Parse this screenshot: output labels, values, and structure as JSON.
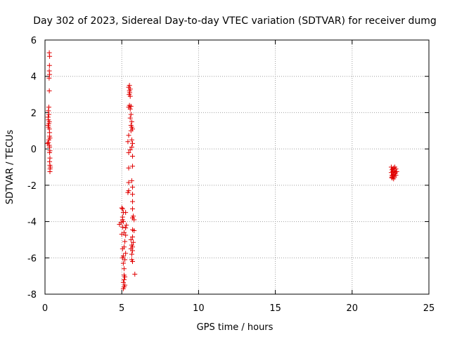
{
  "chart_data": {
    "type": "scatter",
    "title": "Day 302 of 2023, Sidereal Day-to-day VTEC variation (SDTVAR) for receiver dumg",
    "xlabel": "GPS time / hours",
    "ylabel": "SDTVAR / TECUs",
    "xlim": [
      0,
      25
    ],
    "ylim": [
      -8,
      6
    ],
    "xticks": [
      0,
      5,
      10,
      15,
      20,
      25
    ],
    "yticks": [
      -8,
      -6,
      -4,
      -2,
      0,
      2,
      4,
      6
    ],
    "grid": true,
    "marker": "+",
    "color": "#e00000",
    "series": [
      {
        "points": [
          [
            0.28,
            5.3
          ],
          [
            0.3,
            5.1
          ],
          [
            0.29,
            4.6
          ],
          [
            0.28,
            4.3
          ],
          [
            0.3,
            4.1
          ],
          [
            0.27,
            3.9
          ],
          [
            0.28,
            3.2
          ],
          [
            0.25,
            2.3
          ],
          [
            0.22,
            2.1
          ],
          [
            0.25,
            1.9
          ],
          [
            0.2,
            1.75
          ],
          [
            0.22,
            1.6
          ],
          [
            0.28,
            1.5
          ],
          [
            0.25,
            1.4
          ],
          [
            0.2,
            1.3
          ],
          [
            0.23,
            1.2
          ],
          [
            0.28,
            1.1
          ],
          [
            0.3,
            0.9
          ],
          [
            0.3,
            0.7
          ],
          [
            0.32,
            0.6
          ],
          [
            0.25,
            0.5
          ],
          [
            0.22,
            0.35
          ],
          [
            0.15,
            0.3
          ],
          [
            0.28,
            0.2
          ],
          [
            0.3,
            0.1
          ],
          [
            0.32,
            -0.1
          ],
          [
            0.3,
            -0.2
          ],
          [
            0.32,
            -0.5
          ],
          [
            0.3,
            -0.7
          ],
          [
            0.32,
            -0.9
          ],
          [
            0.35,
            -1.0
          ],
          [
            0.33,
            -1.1
          ],
          [
            0.32,
            -1.25
          ],
          [
            5.5,
            3.5
          ],
          [
            5.45,
            3.4
          ],
          [
            5.55,
            3.3
          ],
          [
            5.5,
            3.2
          ],
          [
            5.52,
            3.1
          ],
          [
            5.48,
            3.0
          ],
          [
            5.55,
            2.9
          ],
          [
            5.5,
            2.4
          ],
          [
            5.6,
            2.35
          ],
          [
            5.45,
            2.3
          ],
          [
            5.55,
            2.2
          ],
          [
            5.6,
            1.9
          ],
          [
            5.55,
            1.7
          ],
          [
            5.65,
            1.5
          ],
          [
            5.6,
            1.3
          ],
          [
            5.65,
            1.2
          ],
          [
            5.7,
            1.1
          ],
          [
            5.6,
            1.0
          ],
          [
            5.45,
            0.75
          ],
          [
            5.4,
            0.4
          ],
          [
            5.65,
            0.5
          ],
          [
            5.7,
            0.3
          ],
          [
            5.65,
            0.1
          ],
          [
            5.55,
            -0.05
          ],
          [
            5.45,
            -0.2
          ],
          [
            5.7,
            -0.4
          ],
          [
            5.7,
            -0.95
          ],
          [
            5.45,
            -1.05
          ],
          [
            5.65,
            -1.75
          ],
          [
            5.45,
            -1.85
          ],
          [
            5.7,
            -2.1
          ],
          [
            5.45,
            -2.3
          ],
          [
            5.4,
            -2.4
          ],
          [
            5.7,
            -2.5
          ],
          [
            5.7,
            -2.9
          ],
          [
            5.7,
            -3.3
          ],
          [
            5.0,
            -3.25
          ],
          [
            5.05,
            -3.3
          ],
          [
            5.1,
            -3.5
          ],
          [
            5.25,
            -3.5
          ],
          [
            5.75,
            -3.7
          ],
          [
            5.7,
            -3.8
          ],
          [
            5.8,
            -3.9
          ],
          [
            5.05,
            -3.75
          ],
          [
            5.05,
            -3.9
          ],
          [
            4.95,
            -4.05
          ],
          [
            5.1,
            -4.0
          ],
          [
            4.85,
            -4.15
          ],
          [
            5.3,
            -4.2
          ],
          [
            5.05,
            -4.3
          ],
          [
            5.25,
            -4.35
          ],
          [
            5.7,
            -4.45
          ],
          [
            5.8,
            -4.5
          ],
          [
            5.15,
            -4.6
          ],
          [
            5.0,
            -4.7
          ],
          [
            5.25,
            -4.75
          ],
          [
            5.7,
            -4.85
          ],
          [
            5.6,
            -5.0
          ],
          [
            5.2,
            -5.1
          ],
          [
            5.75,
            -5.15
          ],
          [
            5.65,
            -5.3
          ],
          [
            5.7,
            -5.4
          ],
          [
            5.15,
            -5.4
          ],
          [
            5.05,
            -5.5
          ],
          [
            5.6,
            -5.5
          ],
          [
            5.7,
            -5.6
          ],
          [
            5.25,
            -5.75
          ],
          [
            5.65,
            -5.8
          ],
          [
            5.1,
            -5.9
          ],
          [
            5.05,
            -6.0
          ],
          [
            5.2,
            -6.1
          ],
          [
            5.65,
            -6.1
          ],
          [
            5.7,
            -6.2
          ],
          [
            5.1,
            -6.3
          ],
          [
            5.15,
            -6.6
          ],
          [
            5.85,
            -6.9
          ],
          [
            5.15,
            -6.95
          ],
          [
            5.2,
            -7.05
          ],
          [
            5.15,
            -7.2
          ],
          [
            5.1,
            -7.35
          ],
          [
            5.2,
            -7.5
          ],
          [
            5.15,
            -7.6
          ],
          [
            5.1,
            -7.7
          ],
          [
            22.55,
            -1.0
          ],
          [
            22.7,
            -1.05
          ],
          [
            22.85,
            -1.1
          ],
          [
            22.6,
            -1.15
          ],
          [
            22.75,
            -1.2
          ],
          [
            22.65,
            -1.25
          ],
          [
            22.9,
            -1.25
          ],
          [
            22.55,
            -1.3
          ],
          [
            22.8,
            -1.35
          ],
          [
            22.7,
            -1.4
          ],
          [
            22.6,
            -1.45
          ],
          [
            22.85,
            -1.45
          ],
          [
            22.65,
            -1.5
          ],
          [
            22.75,
            -1.55
          ],
          [
            22.6,
            -1.6
          ],
          [
            22.7,
            -1.65
          ],
          [
            22.8,
            -1.3
          ],
          [
            22.65,
            -1.1
          ],
          [
            22.78,
            -1.0
          ],
          [
            22.58,
            -1.55
          ]
        ]
      }
    ]
  }
}
